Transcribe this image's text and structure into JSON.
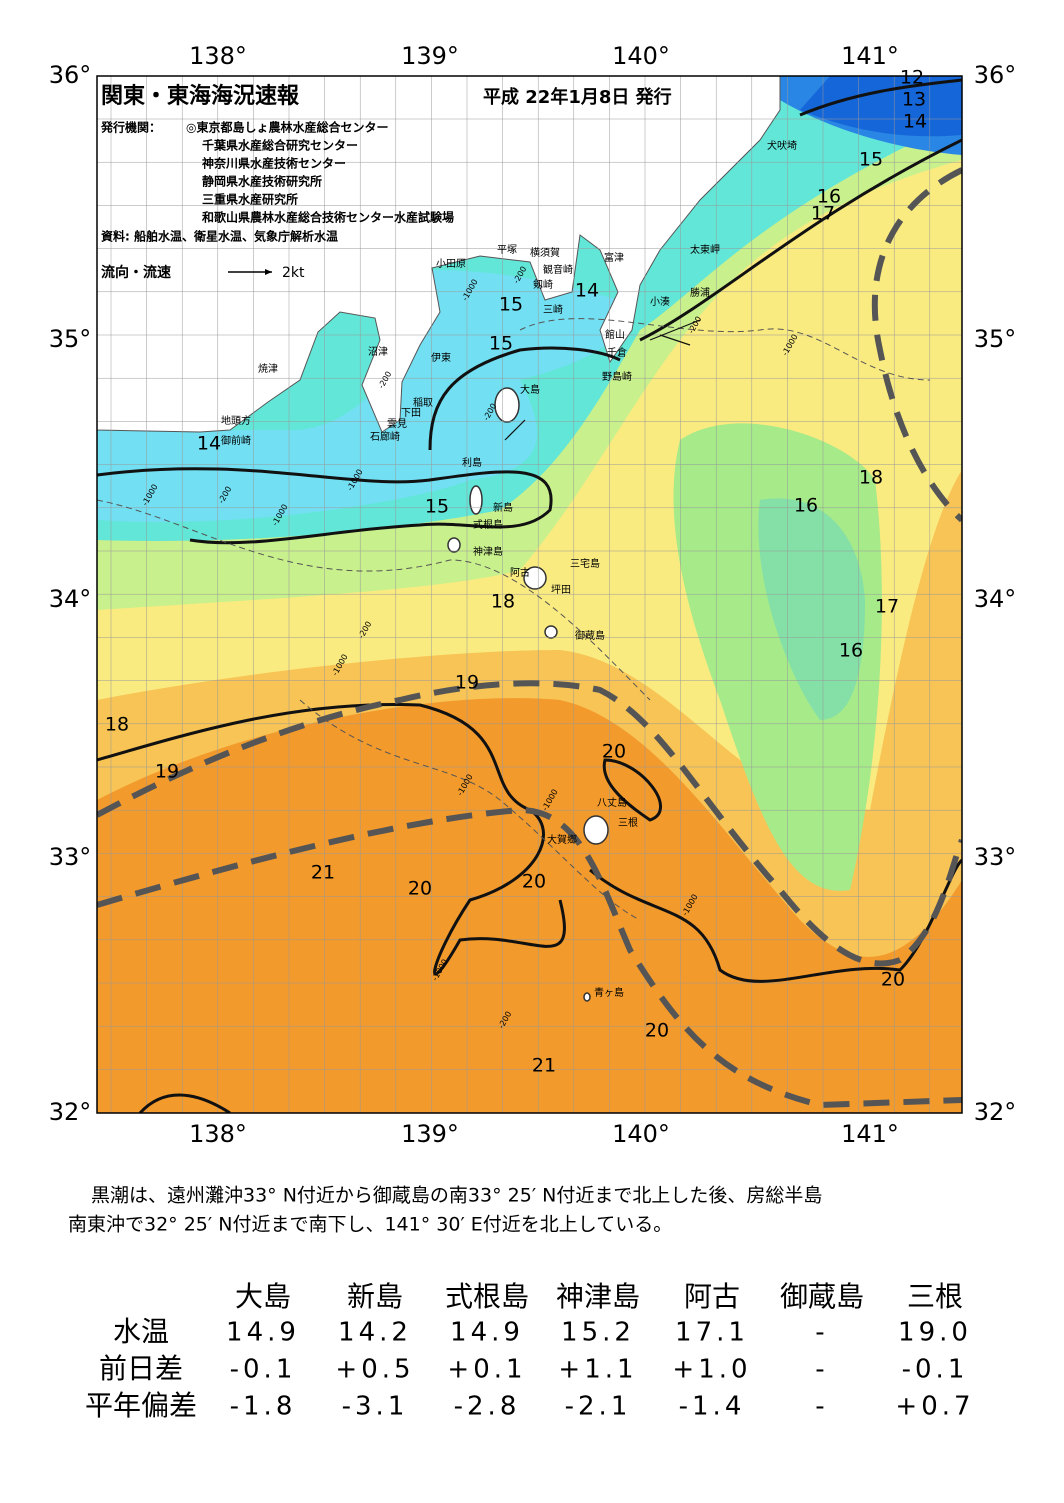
{
  "map": {
    "title": "関東・東海海況速報",
    "issue_date": "平成 22年1月8日 発行",
    "publishers_label": "発行機関：",
    "publishers": [
      "◎東京都島しょ農林水産総合センター",
      "千葉県水産総合研究センター",
      "神奈川県水産技術センター",
      "静岡県水産技術研究所",
      "三重県水産研究所",
      "和歌山県農林水産総合技術センター水産試験場"
    ],
    "source": "資料: 船舶水温、衛星水温、気象庁解析水温",
    "legend": {
      "label": "流向・流速",
      "speed": "2kt"
    },
    "lon_labels": [
      "138°",
      "139°",
      "140°",
      "141°"
    ],
    "lat_labels": [
      "36°",
      "35°",
      "34°",
      "33°",
      "32°"
    ],
    "place_names": [
      "犬吠埼",
      "太東岬",
      "勝浦",
      "小湊",
      "館山",
      "千倉",
      "野島崎",
      "富津",
      "横須賀",
      "観音崎",
      "剱崎",
      "三崎",
      "平塚",
      "小田原",
      "沼津",
      "伊東",
      "焼津",
      "稲取",
      "下田",
      "雲見",
      "石廊崎",
      "地頭方",
      "御前崎",
      "大島",
      "利島",
      "新島",
      "式根島",
      "神津島",
      "三宅島",
      "阿古",
      "坪田",
      "御蔵島",
      "八丈島",
      "三根",
      "大賀郷",
      "青ヶ島"
    ],
    "contour_labels": [
      "12",
      "13",
      "14",
      "15",
      "16",
      "17",
      "18",
      "16",
      "17",
      "16",
      "15",
      "14",
      "15",
      "14",
      "15",
      "18",
      "19",
      "18",
      "19",
      "20",
      "21",
      "20",
      "20",
      "20",
      "20",
      "21"
    ],
    "depth_labels": [
      "-200",
      "-1000",
      "-200",
      "-1000",
      "-200",
      "-1000",
      "-200",
      "-1000",
      "-1000",
      "-200",
      "-1000",
      "-1000",
      "-1000",
      "-1000",
      "-200",
      "-1000",
      "-200"
    ]
  },
  "summary": [
    "黒潮は、遠州灘沖33° N付近から御蔵島の南33° 25′ N付近まで北上した後、房総半島",
    "南東沖で32° 25′ N付近まで南下し、141° 30′ E付近を北上している。"
  ],
  "table": {
    "columns": [
      "大島",
      "新島",
      "式根島",
      "神津島",
      "阿古",
      "御蔵島",
      "三根"
    ],
    "rows": [
      {
        "label": "水温",
        "values": [
          "14.9",
          "14.2",
          "14.9",
          "15.2",
          "17.1",
          "-",
          "19.0"
        ]
      },
      {
        "label": "前日差",
        "values": [
          "-0.1",
          "+0.5",
          "+0.1",
          "+1.1",
          "+1.0",
          "-",
          "-0.1"
        ]
      },
      {
        "label": "平年偏差",
        "values": [
          "-1.8",
          "-3.1",
          "-2.8",
          "-2.1",
          "-1.4",
          "-",
          "+0.7"
        ]
      }
    ]
  }
}
